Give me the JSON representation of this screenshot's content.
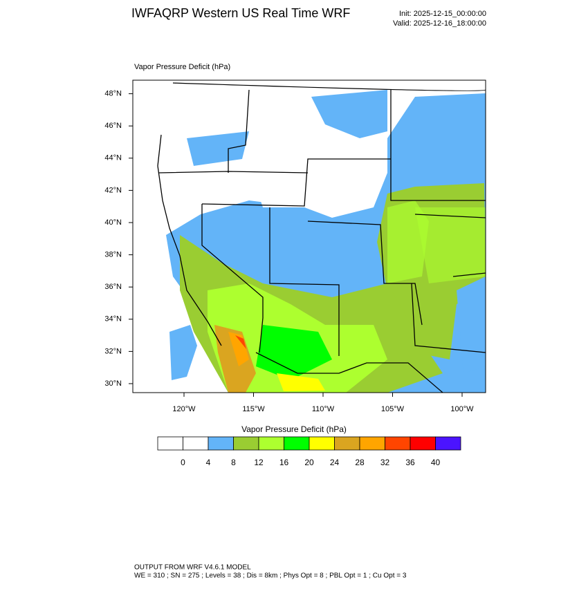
{
  "header": {
    "title": "IWFAQRP Western US Real Time WRF",
    "init": "Init: 2025-12-15_00:00:00",
    "valid": "Valid: 2025-12-16_18:00:00"
  },
  "map": {
    "title": "Vapor Pressure Deficit   (hPa)",
    "lat_labels": [
      "30°N",
      "32°N",
      "34°N",
      "36°N",
      "38°N",
      "40°N",
      "42°N",
      "44°N",
      "46°N",
      "48°N"
    ],
    "lon_labels": [
      "120°W",
      "115°W",
      "110°W",
      "105°W",
      "100°W"
    ]
  },
  "colorbar": {
    "title": "Vapor Pressure Deficit  (hPa)",
    "colors": [
      "#ffffff",
      "#ffffff",
      "#63b4f8",
      "#9acd32",
      "#adff2f",
      "#00ff00",
      "#ffff00",
      "#daa520",
      "#ffa500",
      "#ff4500",
      "#ff0000",
      "#4b14ff"
    ],
    "ticks": [
      0,
      4,
      8,
      12,
      16,
      20,
      24,
      28,
      32,
      36,
      40
    ]
  },
  "footer": {
    "line1": "OUTPUT FROM WRF V4.6.1 MODEL",
    "line2": "WE = 310 ; SN = 275 ; Levels = 38 ; Dis = 8km ; Phys Opt = 8 ; PBL Opt = 1 ; Cu Opt = 3"
  }
}
